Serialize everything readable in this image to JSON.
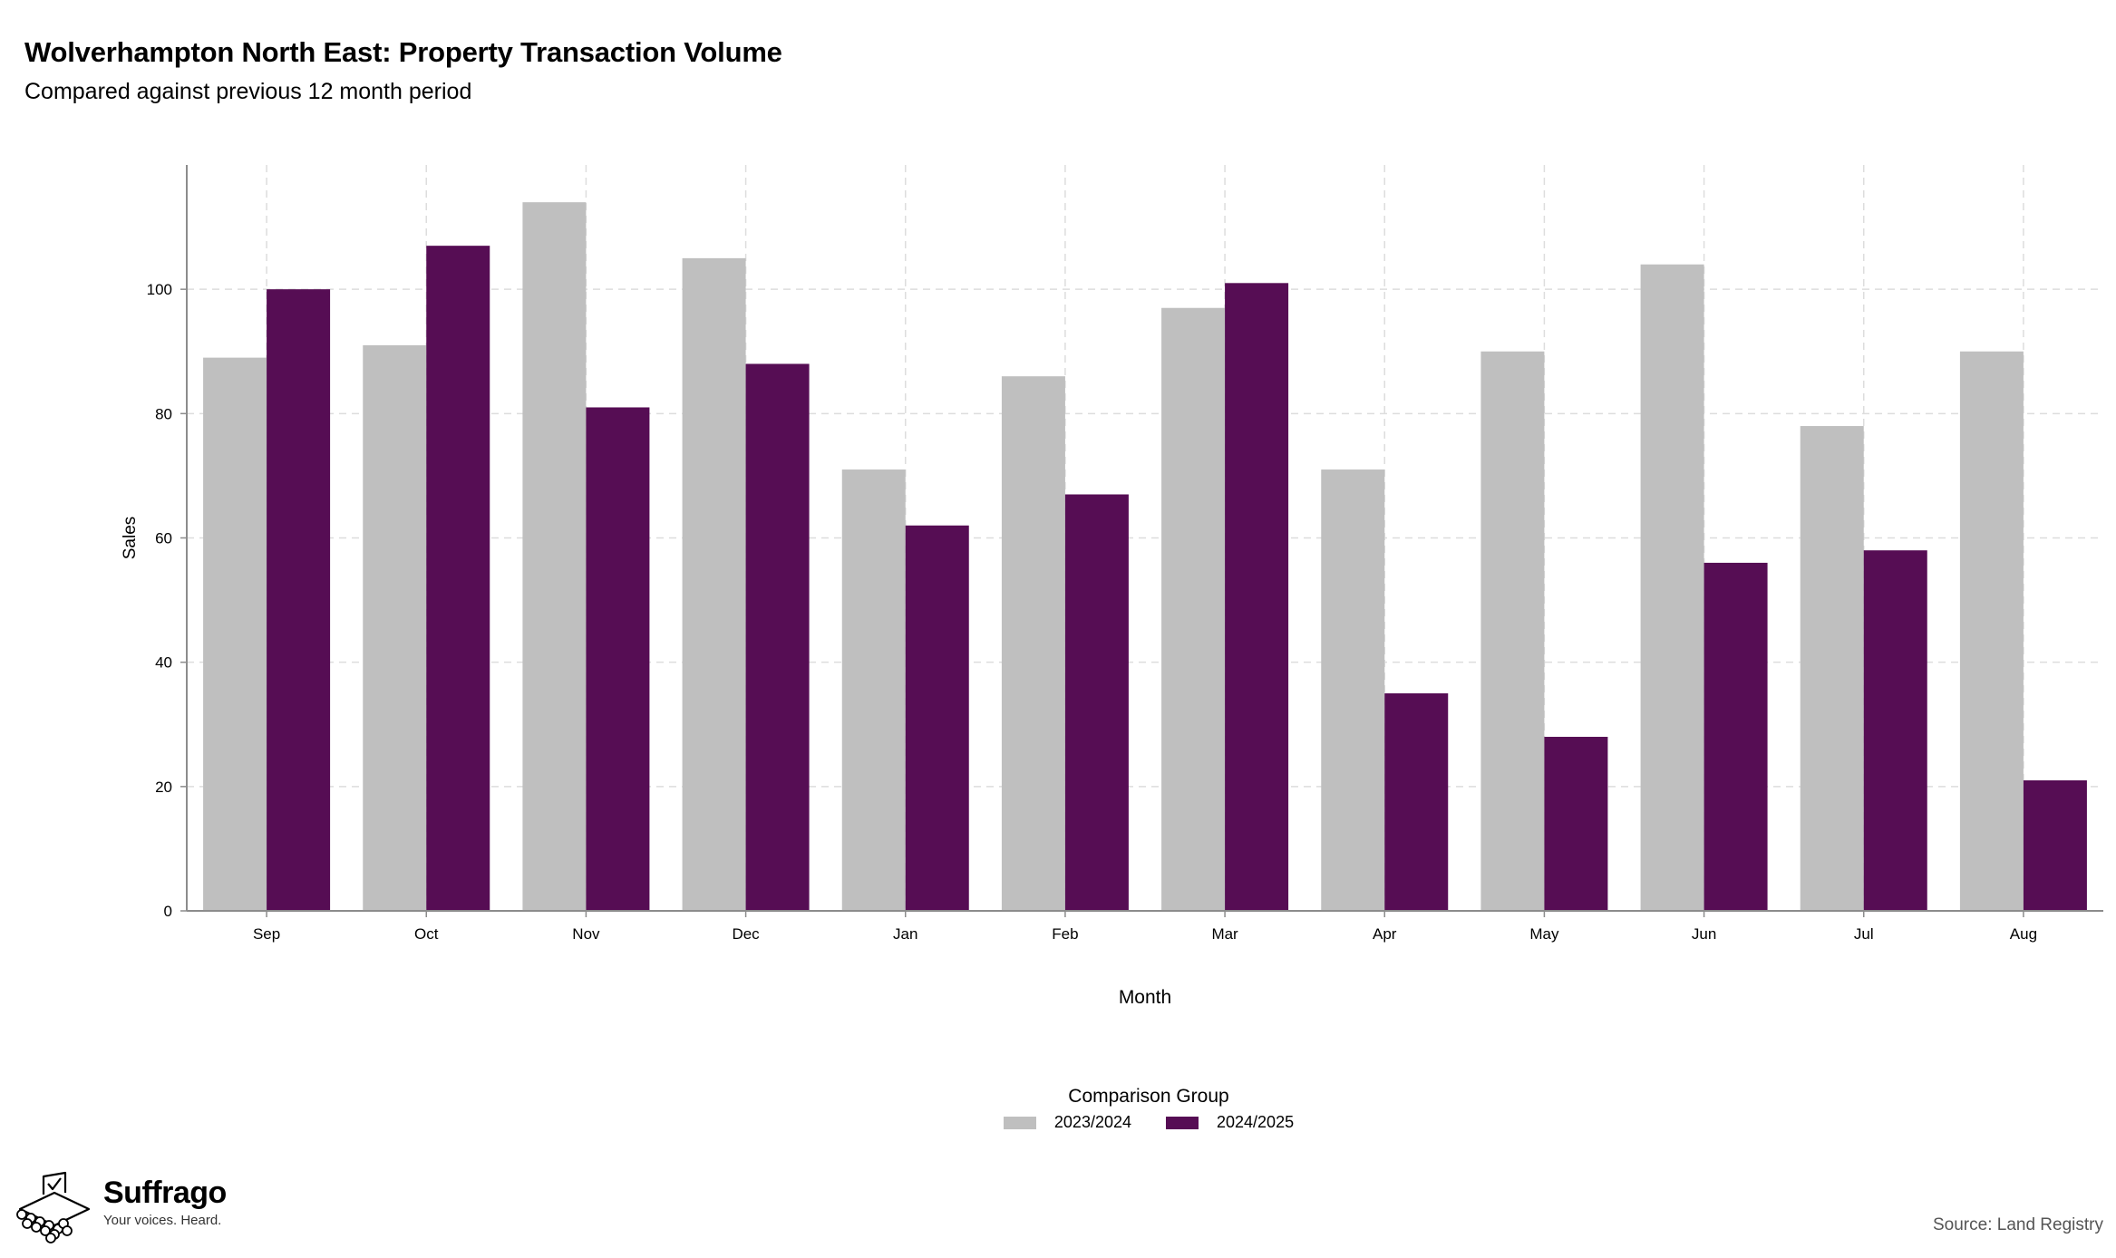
{
  "title": "Wolverhampton North East: Property Transaction Volume",
  "subtitle": "Compared against previous 12 month period",
  "legend": {
    "title": "Comparison Group",
    "items": [
      "2023/2024",
      "2024/2025"
    ]
  },
  "brand": {
    "name": "Suffrago",
    "tagline": "Your voices. Heard."
  },
  "source": "Source: Land Registry",
  "colors": {
    "series_prev": "#bfbfbf",
    "series_curr": "#560d54",
    "grid": "#dddddd",
    "axis": "#8c8c8c"
  },
  "chart_data": {
    "type": "bar",
    "title": "Wolverhampton North East: Property Transaction Volume",
    "subtitle": "Compared against previous 12 month period",
    "xlabel": "Month",
    "ylabel": "Sales",
    "categories": [
      "Sep",
      "Oct",
      "Nov",
      "Dec",
      "Jan",
      "Feb",
      "Mar",
      "Apr",
      "May",
      "Jun",
      "Jul",
      "Aug"
    ],
    "series": [
      {
        "name": "2023/2024",
        "values": [
          89,
          91,
          114,
          105,
          71,
          86,
          97,
          71,
          90,
          104,
          78,
          90
        ]
      },
      {
        "name": "2024/2025",
        "values": [
          100,
          107,
          81,
          88,
          62,
          67,
          101,
          35,
          28,
          56,
          58,
          21
        ]
      }
    ],
    "ylim": [
      0,
      120
    ],
    "yticks": [
      0,
      20,
      40,
      60,
      80,
      100
    ],
    "grid": true,
    "legend_position": "bottom"
  }
}
